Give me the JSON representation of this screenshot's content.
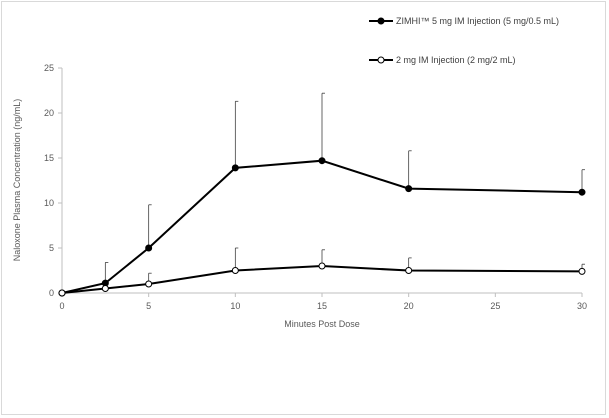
{
  "chart_data": {
    "type": "line",
    "title": "",
    "xlabel": "Minutes Post Dose",
    "ylabel": "Naloxone Plasma Concentration (ng/mL)",
    "xlim": [
      0,
      30
    ],
    "ylim": [
      0,
      25
    ],
    "xticks": [
      0,
      5,
      10,
      15,
      20,
      25,
      30
    ],
    "yticks": [
      0,
      5,
      10,
      15,
      20,
      25
    ],
    "grid": false,
    "legend": "top-right",
    "series": [
      {
        "name": "ZIMHI™ 5 mg IM Injection (5 mg/0.5 mL)",
        "marker": "filled-circle",
        "color": "#000000",
        "x": [
          0,
          2.5,
          5,
          10,
          15,
          20,
          30
        ],
        "y": [
          0,
          1.1,
          5.0,
          13.9,
          14.7,
          11.6,
          11.2
        ],
        "error_upper": [
          0,
          2.3,
          4.8,
          7.4,
          7.5,
          4.2,
          2.5
        ]
      },
      {
        "name": "2 mg IM Injection (2 mg/2 mL)",
        "marker": "open-circle",
        "color": "#000000",
        "x": [
          0,
          2.5,
          5,
          10,
          15,
          20,
          30
        ],
        "y": [
          0,
          0.5,
          1.0,
          2.5,
          3.0,
          2.5,
          2.4
        ],
        "error_upper": [
          0,
          0.4,
          1.2,
          2.5,
          1.8,
          1.4,
          0.8
        ]
      }
    ]
  }
}
